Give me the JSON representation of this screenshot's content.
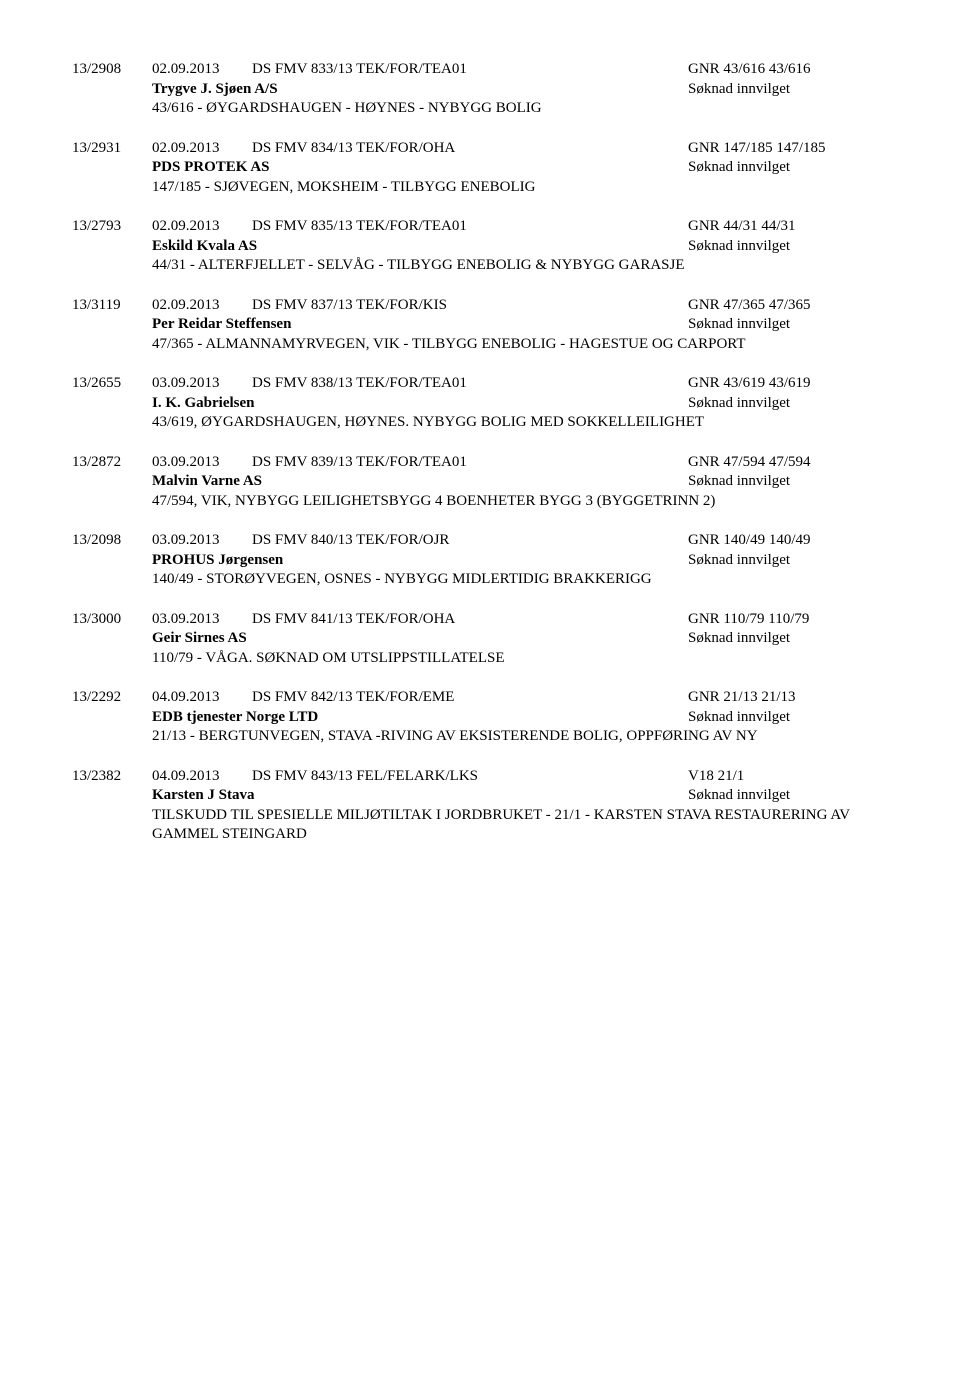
{
  "entries": [
    {
      "caseNo": "13/2908",
      "date": "02.09.2013",
      "docRef": "DS FMV 833/13 TEK/FOR/TEA01",
      "gnr": "GNR 43/616 43/616",
      "applicant": "Trygve J. Sjøen A/S",
      "status": "Søknad innvilget",
      "desc": "43/616 - ØYGARDSHAUGEN - HØYNES - NYBYGG BOLIG"
    },
    {
      "caseNo": "13/2931",
      "date": "02.09.2013",
      "docRef": "DS FMV 834/13 TEK/FOR/OHA",
      "gnr": "GNR 147/185 147/185",
      "applicant": "PDS PROTEK AS",
      "status": "Søknad innvilget",
      "desc": "147/185 - SJØVEGEN, MOKSHEIM - TILBYGG ENEBOLIG"
    },
    {
      "caseNo": "13/2793",
      "date": "02.09.2013",
      "docRef": "DS FMV 835/13 TEK/FOR/TEA01",
      "gnr": "GNR 44/31 44/31",
      "applicant": "Eskild Kvala AS",
      "status": "Søknad innvilget",
      "desc": "44/31 - ALTERFJELLET - SELVÅG - TILBYGG ENEBOLIG & NYBYGG GARASJE"
    },
    {
      "caseNo": "13/3119",
      "date": "02.09.2013",
      "docRef": "DS FMV 837/13 TEK/FOR/KIS",
      "gnr": "GNR 47/365 47/365",
      "applicant": "Per Reidar Steffensen",
      "status": "Søknad innvilget",
      "desc": "47/365 - ALMANNAMYRVEGEN, VIK - TILBYGG ENEBOLIG - HAGESTUE OG CARPORT"
    },
    {
      "caseNo": "13/2655",
      "date": "03.09.2013",
      "docRef": "DS FMV 838/13 TEK/FOR/TEA01",
      "gnr": "GNR 43/619 43/619",
      "applicant": "I. K. Gabrielsen",
      "status": "Søknad innvilget",
      "desc": "43/619, ØYGARDSHAUGEN, HØYNES. NYBYGG BOLIG MED SOKKELLEILIGHET"
    },
    {
      "caseNo": "13/2872",
      "date": "03.09.2013",
      "docRef": "DS FMV 839/13 TEK/FOR/TEA01",
      "gnr": "GNR 47/594 47/594",
      "applicant": "Malvin Varne AS",
      "status": "Søknad innvilget",
      "desc": "47/594, VIK, NYBYGG LEILIGHETSBYGG 4 BOENHETER BYGG 3 (BYGGETRINN 2)"
    },
    {
      "caseNo": "13/2098",
      "date": "03.09.2013",
      "docRef": "DS FMV 840/13 TEK/FOR/OJR",
      "gnr": "GNR 140/49 140/49",
      "applicant": "PROHUS Jørgensen",
      "status": "Søknad innvilget",
      "desc": "140/49 - STORØYVEGEN, OSNES - NYBYGG MIDLERTIDIG BRAKKERIGG"
    },
    {
      "caseNo": "13/3000",
      "date": "03.09.2013",
      "docRef": "DS FMV 841/13 TEK/FOR/OHA",
      "gnr": "GNR 110/79 110/79",
      "applicant": "Geir Sirnes AS",
      "status": "Søknad innvilget",
      "desc": "110/79 - VÅGA. SØKNAD OM UTSLIPPSTILLATELSE"
    },
    {
      "caseNo": "13/2292",
      "date": "04.09.2013",
      "docRef": "DS FMV 842/13 TEK/FOR/EME",
      "gnr": "GNR 21/13 21/13",
      "applicant": "EDB tjenester Norge LTD",
      "status": "Søknad innvilget",
      "desc": "21/13 - BERGTUNVEGEN, STAVA -RIVING AV EKSISTERENDE BOLIG, OPPFØRING AV NY"
    },
    {
      "caseNo": "13/2382",
      "date": "04.09.2013",
      "docRef": "DS FMV 843/13 FEL/FELARK/LKS",
      "gnr": "V18 21/1",
      "applicant": "Karsten J Stava",
      "status": "Søknad innvilget",
      "desc": "TILSKUDD TIL SPESIELLE MILJØTILTAK I JORDBRUKET - 21/1 - KARSTEN STAVA RESTAURERING AV GAMMEL STEINGARD"
    }
  ]
}
